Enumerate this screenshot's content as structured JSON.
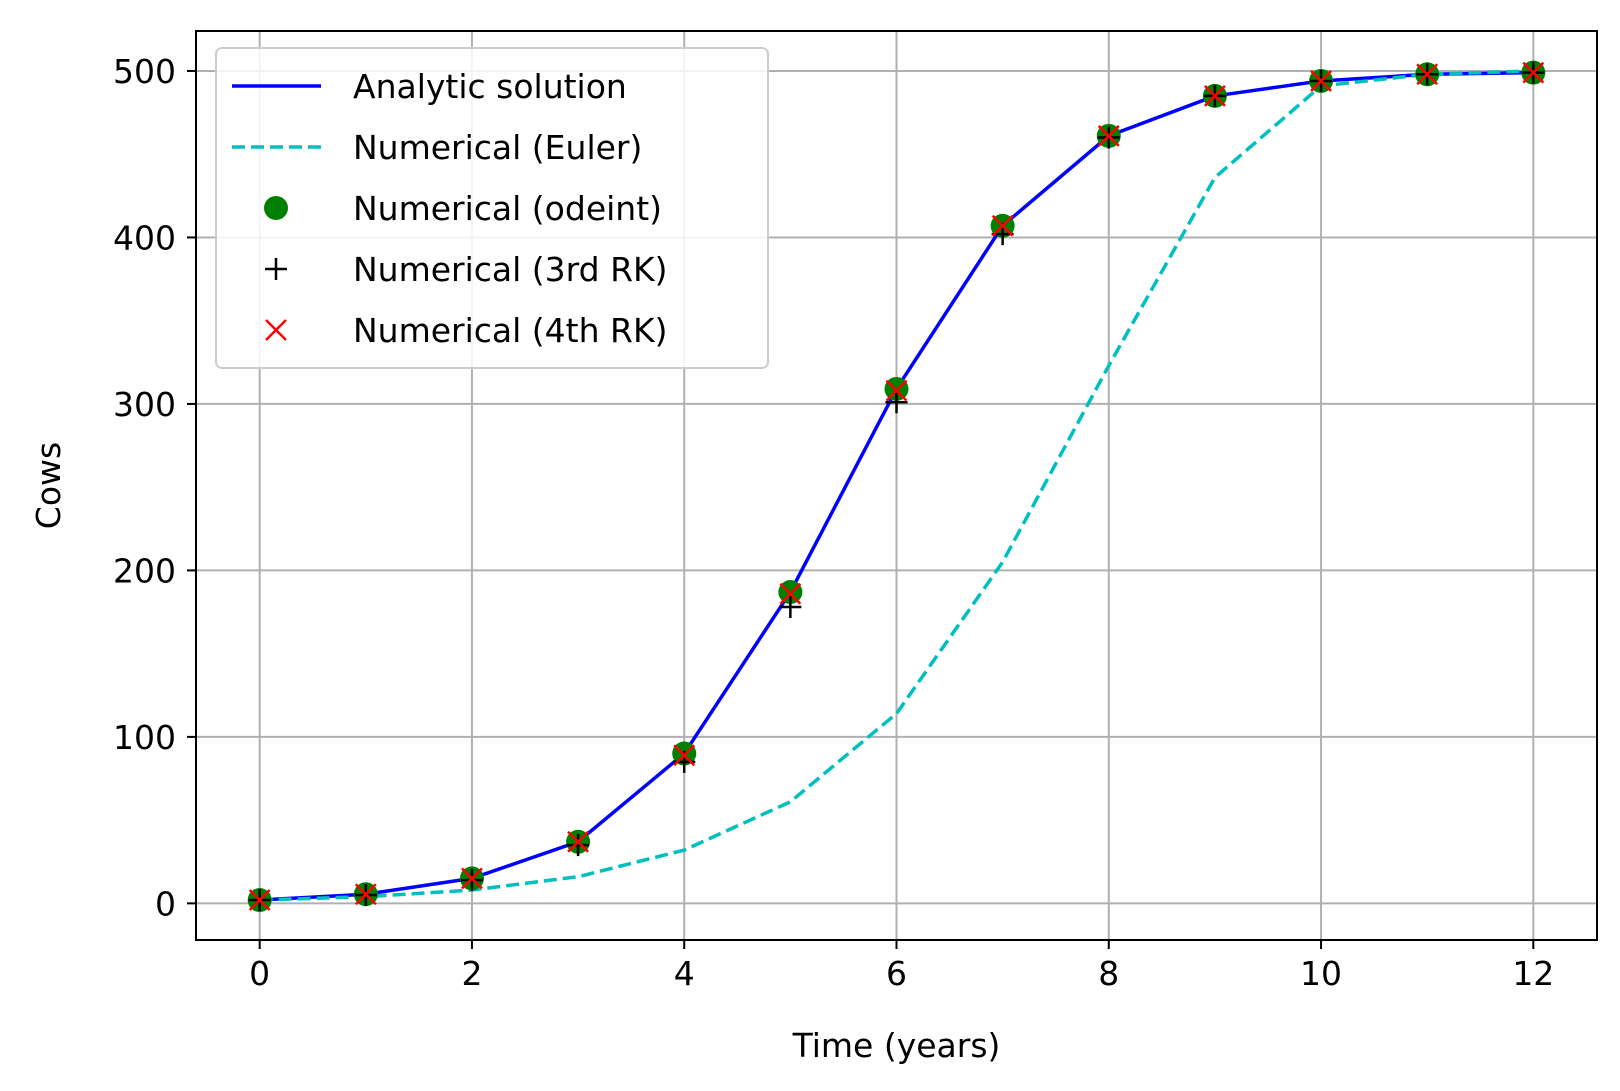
{
  "chart_data": {
    "type": "line",
    "title": "",
    "xlabel": "Time (years)",
    "ylabel": "Cows",
    "xlim": [
      -0.6,
      12.6
    ],
    "ylim": [
      -22,
      524
    ],
    "xticks": [
      0,
      2,
      4,
      6,
      8,
      10,
      12
    ],
    "yticks": [
      0,
      100,
      200,
      300,
      400,
      500
    ],
    "grid": true,
    "legend_position": "upper-left",
    "x": [
      0,
      1,
      2,
      3,
      4,
      5,
      6,
      7,
      8,
      9,
      10,
      11,
      12
    ],
    "series": [
      {
        "name": "Analytic solution",
        "style": "line",
        "color": "#0000ff",
        "values": [
          2,
          5.5,
          15,
          37,
          90,
          187,
          309,
          407,
          461,
          485,
          494,
          498,
          499
        ]
      },
      {
        "name": "Numerical (Euler)",
        "style": "dashed",
        "color": "#00bfbf",
        "values": [
          2,
          4,
          8,
          16,
          32,
          61,
          114,
          205,
          323,
          436,
          491,
          498,
          500
        ]
      },
      {
        "name": "Numerical (odeint)",
        "style": "circle",
        "color": "#008000",
        "values": [
          2,
          5.5,
          15,
          37,
          90,
          187,
          309,
          407,
          461,
          485,
          494,
          498,
          499
        ]
      },
      {
        "name": "Numerical (3rd RK)",
        "style": "plus",
        "color": "#000000",
        "values": [
          2,
          5,
          14,
          35,
          85,
          178,
          301,
          402,
          460,
          485,
          494,
          498,
          499
        ]
      },
      {
        "name": "Numerical (4th RK)",
        "style": "x",
        "color": "#ff0000",
        "values": [
          2,
          5.5,
          15,
          37,
          89,
          186,
          308,
          407,
          461,
          485,
          494,
          498,
          499
        ]
      }
    ]
  }
}
